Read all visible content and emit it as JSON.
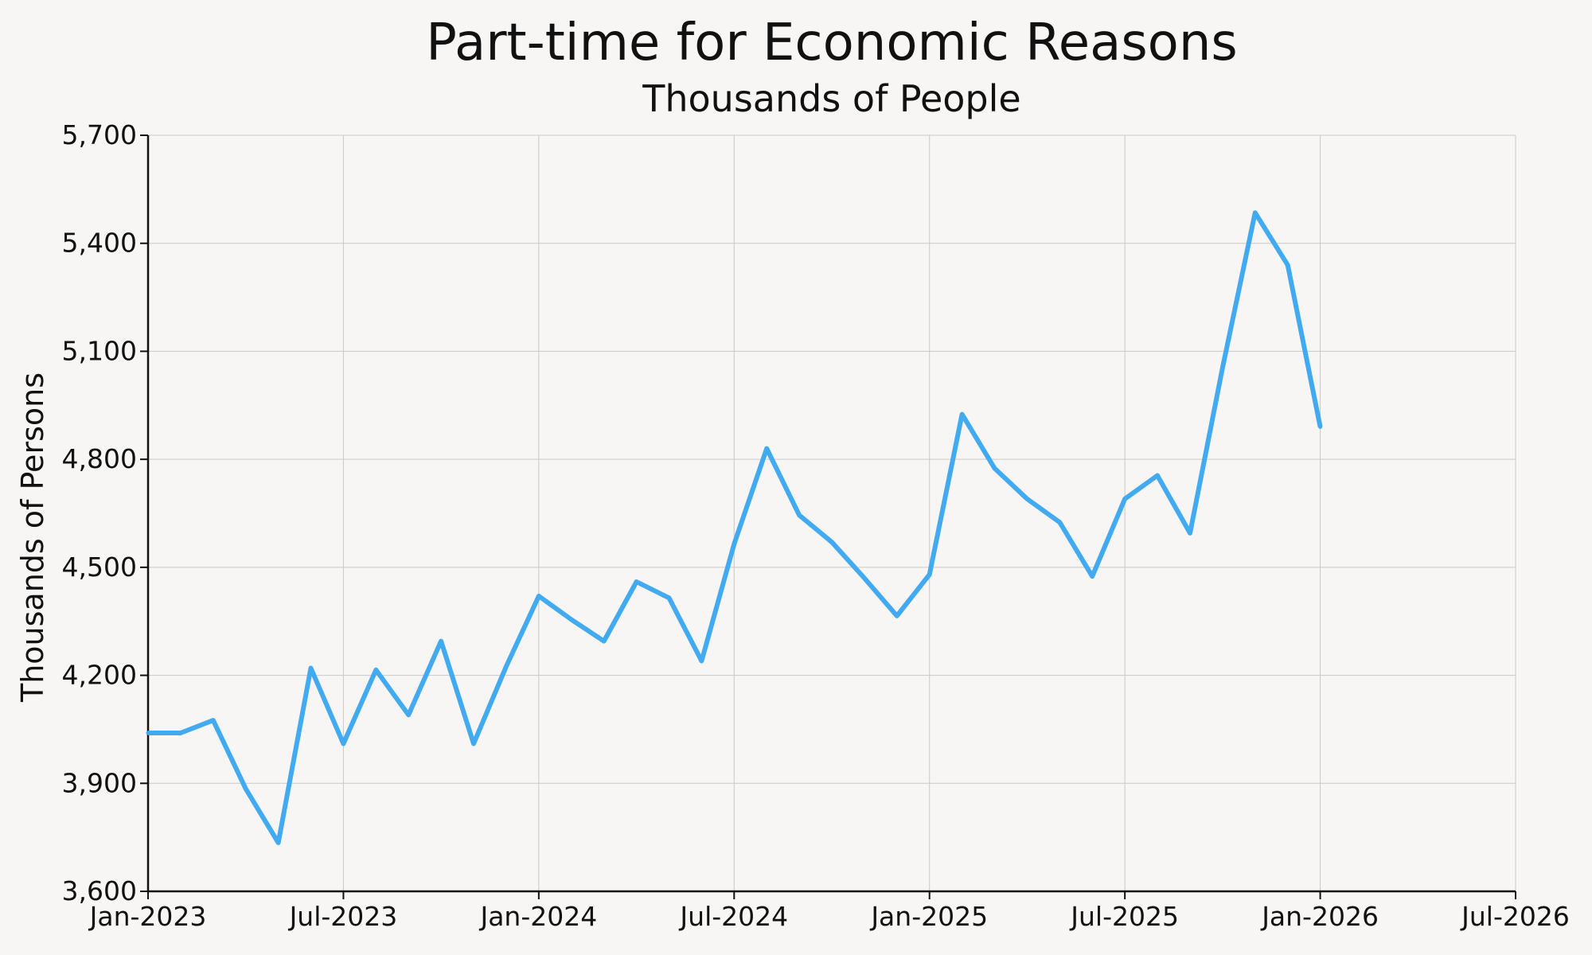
{
  "chart_data": {
    "type": "line",
    "title": "Part-time for Economic Reasons",
    "subtitle": "Thousands of People",
    "xlabel": "",
    "ylabel": "Thousands of Persons",
    "ylim": [
      3600,
      5700
    ],
    "yticks": [
      3600,
      3900,
      4200,
      4500,
      4800,
      5100,
      5400,
      5700
    ],
    "ytick_labels": [
      "3,600",
      "3,900",
      "4,200",
      "4,500",
      "4,800",
      "5,100",
      "5,400",
      "5,700"
    ],
    "xlim": [
      "2023-01",
      "2026-07"
    ],
    "xticks": [
      "2023-01",
      "2023-07",
      "2024-01",
      "2024-07",
      "2025-01",
      "2025-07",
      "2026-01",
      "2026-07"
    ],
    "xtick_labels": [
      "Jan-2023",
      "Jul-2023",
      "Jan-2024",
      "Jul-2024",
      "Jan-2025",
      "Jul-2025",
      "Jan-2026",
      "Jul-2026"
    ],
    "grid": true,
    "line_color": "#42aaf0",
    "series": [
      {
        "x": [
          "2023-01",
          "2023-02",
          "2023-03",
          "2023-04",
          "2023-05",
          "2023-06",
          "2023-07",
          "2023-08",
          "2023-09",
          "2023-10",
          "2023-11",
          "2023-12",
          "2024-01",
          "2024-02",
          "2024-03",
          "2024-04",
          "2024-05",
          "2024-06",
          "2024-07",
          "2024-08",
          "2024-09",
          "2024-10",
          "2024-11",
          "2024-12",
          "2025-01",
          "2025-02",
          "2025-03",
          "2025-04",
          "2025-05",
          "2025-06",
          "2025-07",
          "2025-08",
          "2025-09",
          "2025-10",
          "2025-11",
          "2025-12",
          "2026-01"
        ],
        "values": [
          4040,
          4040,
          4075,
          3885,
          3735,
          4220,
          4010,
          4215,
          4090,
          4295,
          4010,
          4225,
          4420,
          4355,
          4295,
          4460,
          4415,
          4240,
          4565,
          4830,
          4645,
          4570,
          4470,
          4365,
          4480,
          4925,
          4775,
          4690,
          4625,
          4475,
          4690,
          4755,
          4595,
          5055,
          5485,
          5340,
          4890
        ]
      }
    ]
  }
}
